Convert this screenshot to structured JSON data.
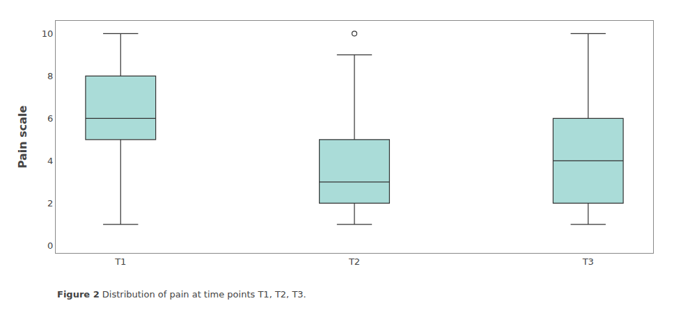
{
  "chart_data": {
    "type": "box",
    "categories": [
      "T1",
      "T2",
      "T3"
    ],
    "boxes": [
      {
        "whisker_low": 1,
        "q1": 5,
        "median": 6,
        "q3": 8,
        "whisker_high": 10,
        "outliers": []
      },
      {
        "whisker_low": 1,
        "q1": 2,
        "median": 3,
        "q3": 5,
        "whisker_high": 9,
        "outliers": [
          10
        ]
      },
      {
        "whisker_low": 1,
        "q1": 2,
        "median": 4,
        "q3": 6,
        "whisker_high": 10,
        "outliers": []
      }
    ],
    "ylabel": "Pain scale",
    "ylim": [
      -0.35,
      10.6
    ],
    "yticks": [
      0,
      2,
      4,
      6,
      8,
      10
    ],
    "color": "#aadcd8",
    "grid": false,
    "annotations": [
      "Figure 2",
      "Distribution of pain at time points T1, T2, T3."
    ]
  }
}
